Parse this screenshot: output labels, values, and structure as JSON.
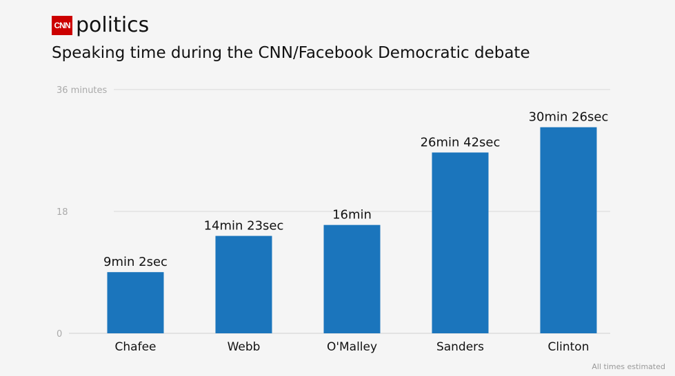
{
  "brand": {
    "logo_text": "CNN",
    "word": "politics"
  },
  "footnote": "All times estimated",
  "chart_data": {
    "type": "bar",
    "title": "Speaking time during the CNN/Facebook Democratic debate",
    "categories": [
      "Chafee",
      "Webb",
      "O'Malley",
      "Sanders",
      "Clinton"
    ],
    "values": [
      9.033,
      14.383,
      16.0,
      26.7,
      30.433
    ],
    "data_labels": [
      "9min 2sec",
      "14min 23sec",
      "16min",
      "26min 42sec",
      "30min 26sec"
    ],
    "y_ticks": [
      0,
      18,
      36
    ],
    "y_tick_labels": [
      "0",
      "18",
      "36 minutes"
    ],
    "ylim": [
      0,
      36
    ],
    "grid": true,
    "bar_color": "#1b75bc"
  }
}
